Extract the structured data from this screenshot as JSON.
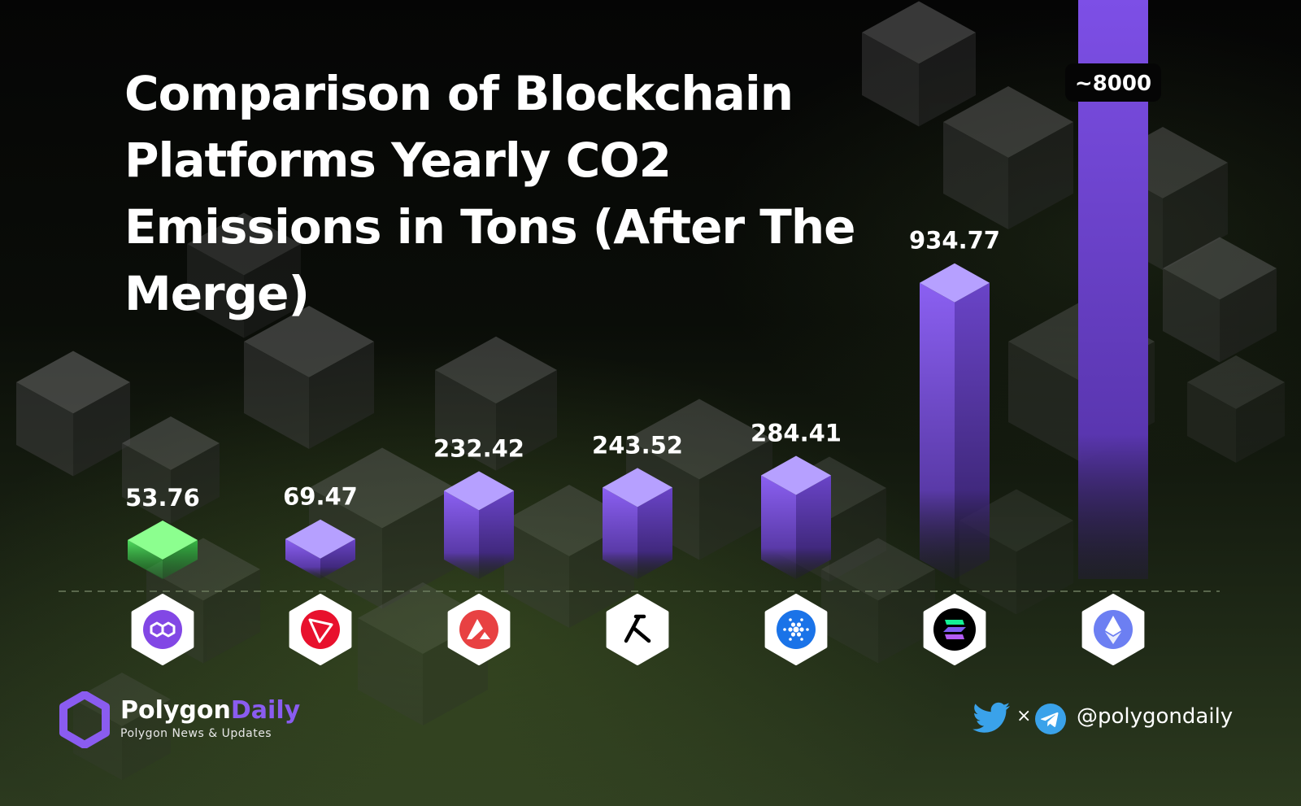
{
  "title": "Comparison of Blockchain Platforms Yearly CO2 Emissions in Tons (After The Merge)",
  "chart_data": {
    "type": "bar",
    "title": "Comparison of Blockchain Platforms Yearly CO2 Emissions in Tons (After The Merge)",
    "categories": [
      "polygon-icon",
      "tron-icon",
      "avalanche-icon",
      "algorand-icon",
      "cardano-icon",
      "solana-icon",
      "ethereum-icon"
    ],
    "values": [
      53.76,
      69.47,
      232.42,
      243.52,
      284.41,
      934.77,
      8000
    ],
    "value_labels": [
      "53.76",
      "69.47",
      "232.42",
      "243.52",
      "284.41",
      "934.77",
      "~8000"
    ],
    "xlabel": "",
    "ylabel": "",
    "grid": false,
    "colors": {
      "highlight": "#5ce86a",
      "bar": "#8a5cf0",
      "bar_top": "#b8a2ff"
    }
  },
  "brand": {
    "name_primary": "Polygon",
    "name_secondary": "Daily",
    "tagline": "Polygon News & Updates",
    "logo_icon": "polygon-hexagon-logo",
    "accent": "#8a5cf0"
  },
  "social": {
    "separator": "×",
    "handle": "@polygondaily",
    "icons": [
      "twitter-icon",
      "telegram-icon"
    ]
  }
}
